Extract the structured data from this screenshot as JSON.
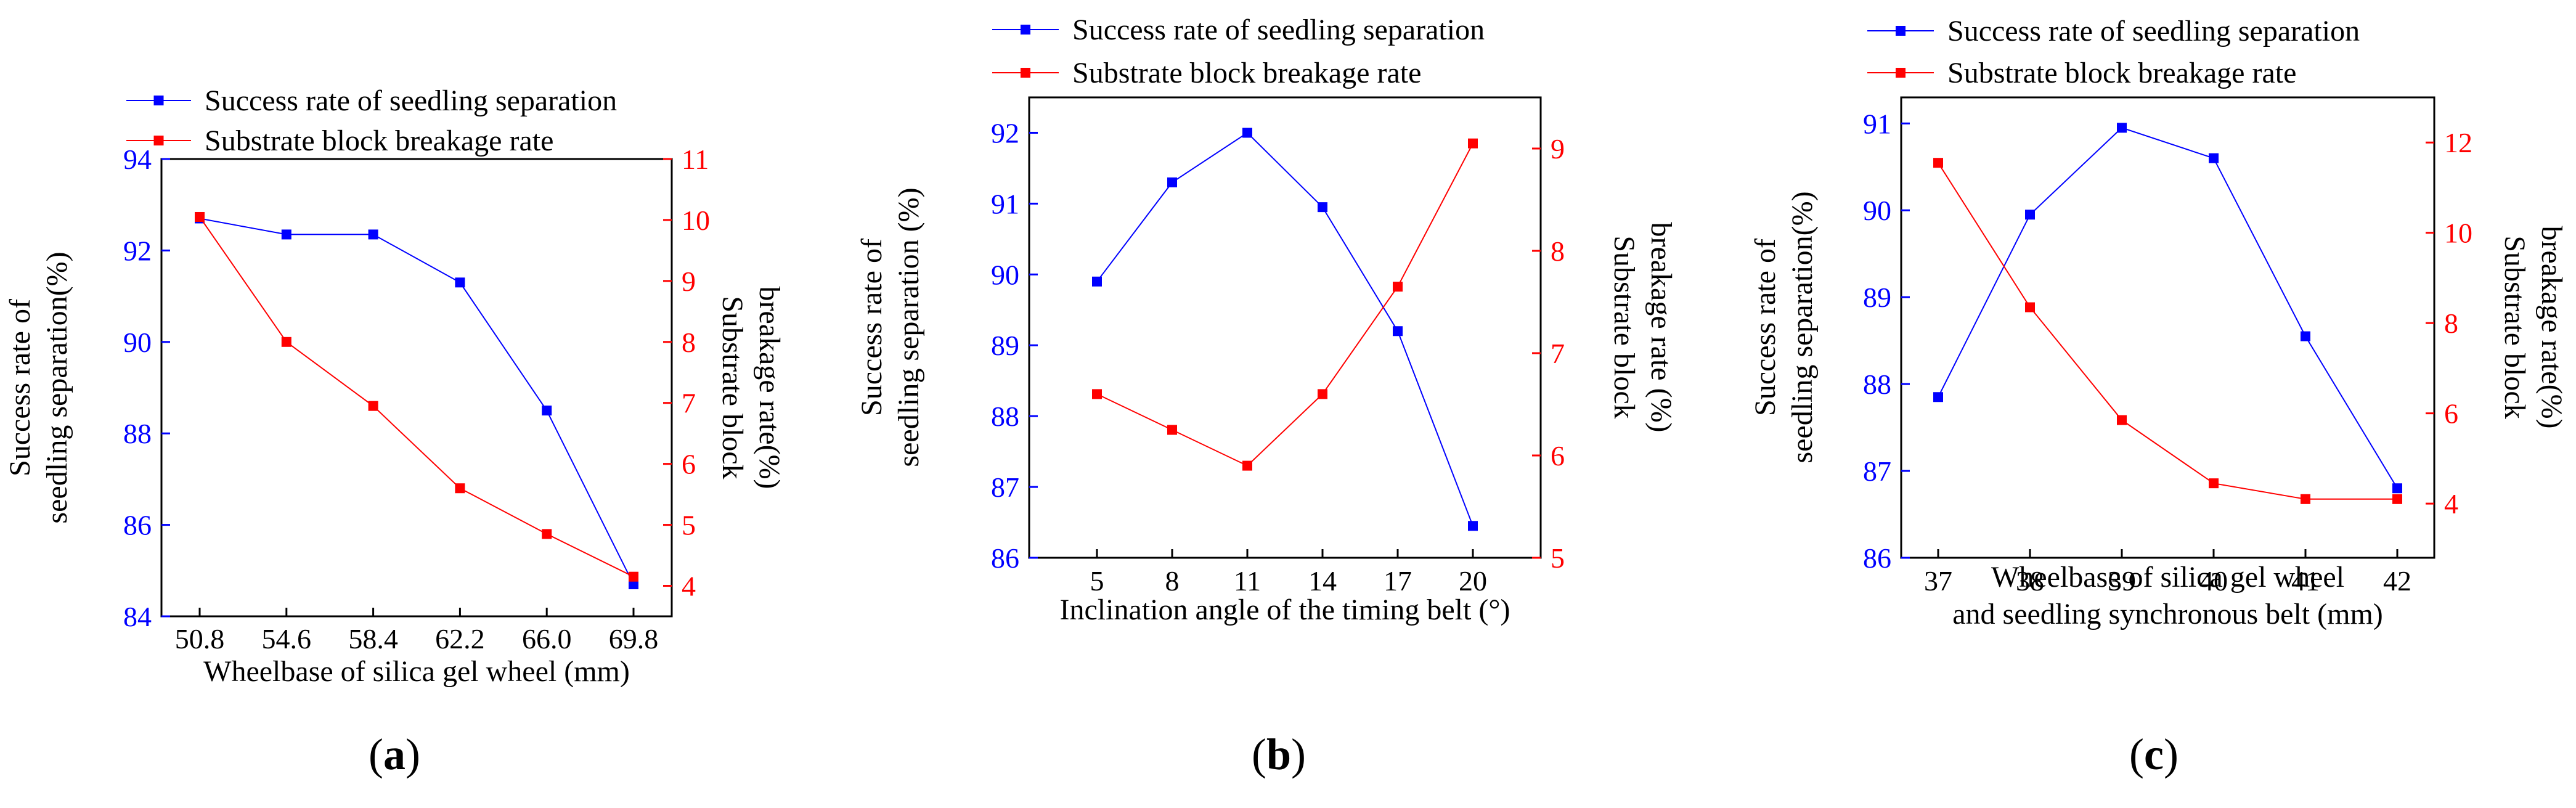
{
  "colors": {
    "blue": "#0000ff",
    "red": "#ff0000",
    "axis": "#000000"
  },
  "chart_data": [
    {
      "type": "line",
      "caption_letter": "a",
      "legend": [
        "Success rate of seedling separation",
        "Substrate block breakage rate"
      ],
      "xlabel": [
        "Wheelbase of silica gel wheel (mm)"
      ],
      "ylabel_left": [
        "Success rate of",
        "seedling separation(%)"
      ],
      "ylabel_right": [
        "Substrate block",
        "breakage rate(%)"
      ],
      "categories": [
        "50.8",
        "54.6",
        "58.4",
        "62.2",
        "66.0",
        "69.8"
      ],
      "ylim_left": [
        84,
        94
      ],
      "yticks_left": [
        "84",
        "86",
        "88",
        "90",
        "92",
        "94"
      ],
      "ylim_right": [
        3.5,
        11
      ],
      "yticks_right": [
        "4",
        "5",
        "6",
        "7",
        "8",
        "9",
        "10",
        "11"
      ],
      "series": [
        {
          "name": "Success rate of seedling separation",
          "axis": "left",
          "color": "#0000ff",
          "values": [
            92.7,
            92.35,
            92.35,
            91.3,
            88.5,
            84.7
          ]
        },
        {
          "name": "Substrate block breakage rate",
          "axis": "right",
          "color": "#ff0000",
          "values": [
            10.05,
            8.0,
            6.95,
            5.6,
            4.85,
            4.15
          ]
        }
      ]
    },
    {
      "type": "line",
      "caption_letter": "b",
      "legend": [
        "Success rate of seedling separation",
        "Substrate block breakage rate"
      ],
      "xlabel": [
        "Inclination angle of the timing belt (°)"
      ],
      "ylabel_left": [
        "Success rate of",
        "seedling separation (%)"
      ],
      "ylabel_right": [
        "Substrate block",
        "breakage rate (%)"
      ],
      "categories": [
        "5",
        "8",
        "11",
        "14",
        "17",
        "20"
      ],
      "ylim_left": [
        86,
        92.5
      ],
      "yticks_left": [
        "86",
        "87",
        "88",
        "89",
        "90",
        "91",
        "92"
      ],
      "ylim_right": [
        5,
        9.5
      ],
      "yticks_right": [
        "5",
        "6",
        "7",
        "8",
        "9"
      ],
      "series": [
        {
          "name": "Success rate of seedling separation",
          "axis": "left",
          "color": "#0000ff",
          "values": [
            89.9,
            91.3,
            92.0,
            90.95,
            89.2,
            86.45
          ]
        },
        {
          "name": "Substrate block breakage rate",
          "axis": "right",
          "color": "#ff0000",
          "values": [
            6.6,
            6.25,
            5.9,
            6.6,
            7.65,
            9.05
          ]
        }
      ]
    },
    {
      "type": "line",
      "caption_letter": "c",
      "legend": [
        "Success rate of seedling separation",
        "Substrate block breakage rate"
      ],
      "xlabel": [
        "Wheelbase of silica gel wheel",
        "and seedling synchronous belt (mm)"
      ],
      "ylabel_left": [
        "Success rate of",
        "seedling separation(%)"
      ],
      "ylabel_right": [
        "Substrate block",
        "breakage rate(%)"
      ],
      "categories": [
        "37",
        "38",
        "39",
        "40",
        "41",
        "42"
      ],
      "ylim_left": [
        86,
        91.3
      ],
      "yticks_left": [
        "86",
        "87",
        "88",
        "89",
        "90",
        "91"
      ],
      "ylim_right": [
        2.8,
        13
      ],
      "yticks_right": [
        "4",
        "6",
        "8",
        "10",
        "12"
      ],
      "series": [
        {
          "name": "Success rate of seedling separation",
          "axis": "left",
          "color": "#0000ff",
          "values": [
            87.85,
            89.95,
            90.95,
            90.6,
            88.55,
            86.8
          ]
        },
        {
          "name": "Substrate block breakage rate",
          "axis": "right",
          "color": "#ff0000",
          "values": [
            11.55,
            8.35,
            5.85,
            4.45,
            4.1,
            4.1
          ]
        }
      ]
    }
  ]
}
